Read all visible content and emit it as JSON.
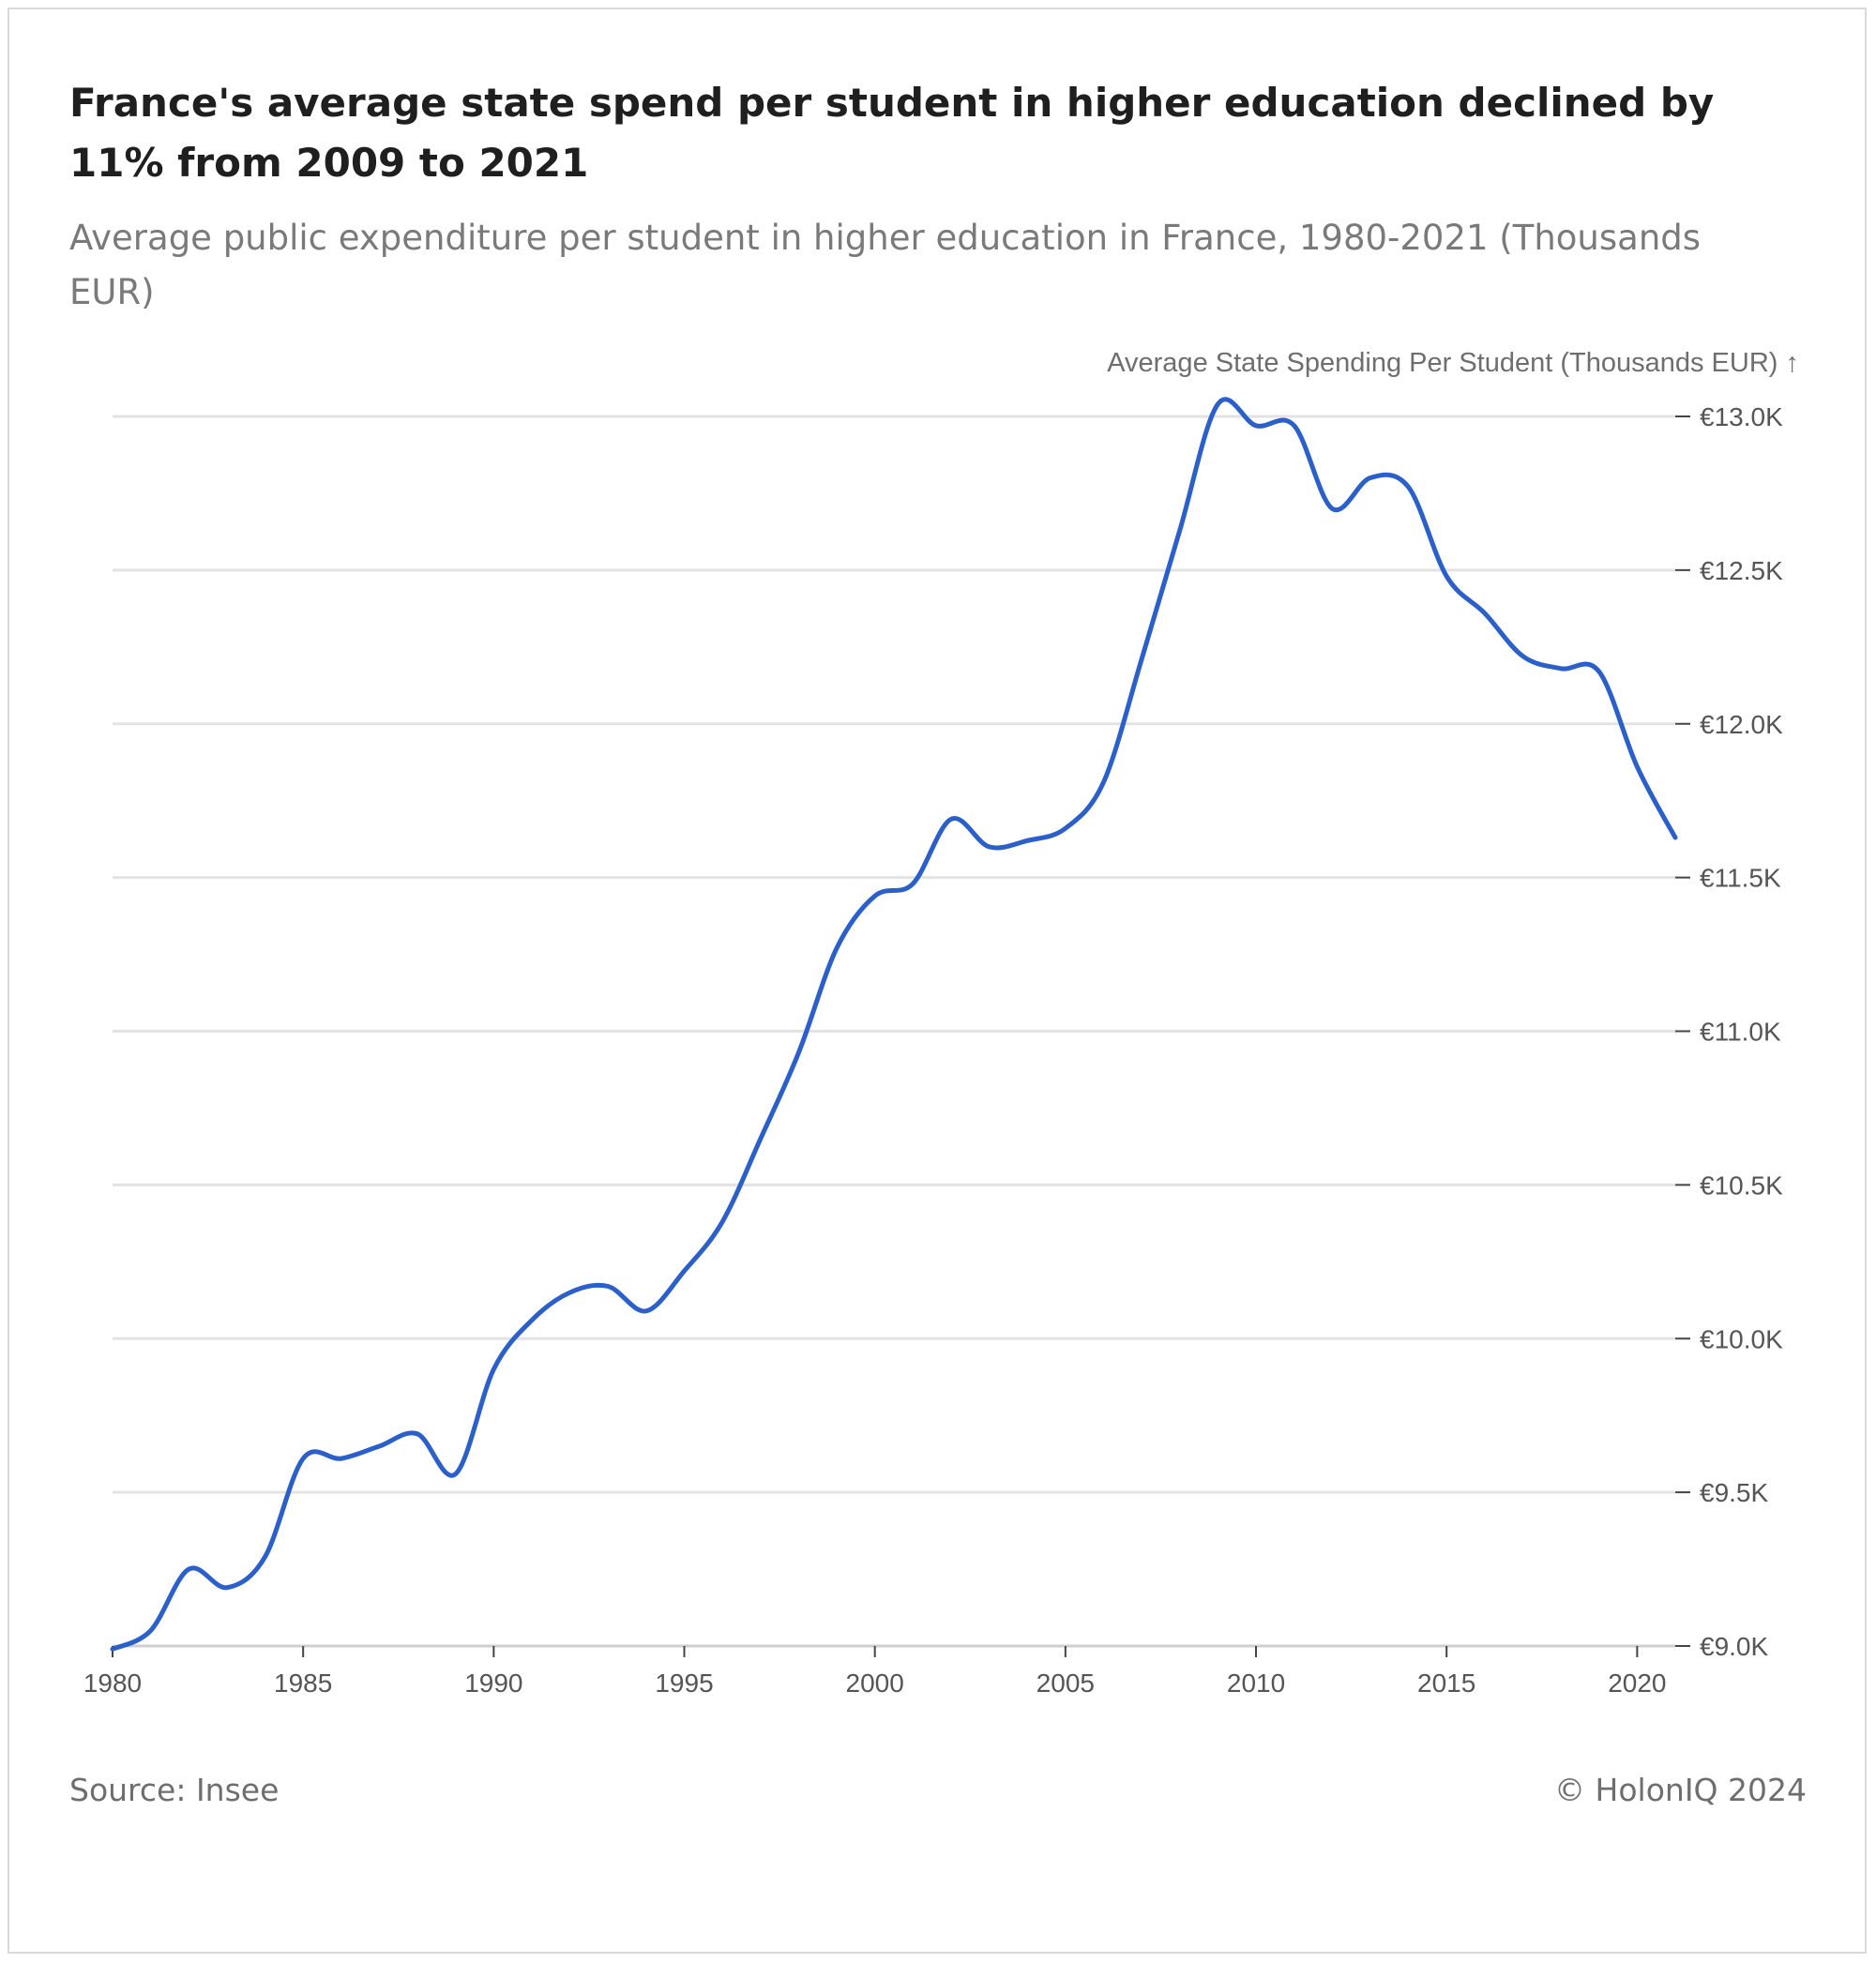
{
  "header": {
    "title": "France's average state spend per student in higher education declined by 11% from 2009 to 2021",
    "subtitle": "Average public expenditure per student in higher education in France, 1980-2021 (Thousands EUR)"
  },
  "footer": {
    "source": "Source: Insee",
    "copyright": "© HolonIQ 2024"
  },
  "colors": {
    "line": "#2b5fc9",
    "grid": "#e3e3e3",
    "text": "#555555"
  },
  "chart_data": {
    "type": "line",
    "title": "France's average state spend per student in higher education declined by 11% from 2009 to 2021",
    "subtitle": "Average public expenditure per student in higher education in France, 1980-2021 (Thousands EUR)",
    "ylabel": "Average State Spending Per Student (Thousands EUR) ↑",
    "xlabel": "",
    "xlim": [
      1980,
      2021
    ],
    "ylim": [
      9.0,
      13.0
    ],
    "grid": true,
    "y_axis_position": "right",
    "x_ticks": [
      1980,
      1985,
      1990,
      1995,
      2000,
      2005,
      2010,
      2015,
      2020
    ],
    "y_ticks": [
      {
        "value": 9.0,
        "label": "€9.0K"
      },
      {
        "value": 9.5,
        "label": "€9.5K"
      },
      {
        "value": 10.0,
        "label": "€10.0K"
      },
      {
        "value": 10.5,
        "label": "€10.5K"
      },
      {
        "value": 11.0,
        "label": "€11.0K"
      },
      {
        "value": 11.5,
        "label": "€11.5K"
      },
      {
        "value": 12.0,
        "label": "€12.0K"
      },
      {
        "value": 12.5,
        "label": "€12.5K"
      },
      {
        "value": 13.0,
        "label": "€13.0K"
      }
    ],
    "series": [
      {
        "x": [
          1980,
          1981,
          1982,
          1983,
          1984,
          1985,
          1986,
          1987,
          1988,
          1989,
          1990,
          1991,
          1992,
          1993,
          1994,
          1995,
          1996,
          1997,
          1998,
          1999,
          2000,
          2001,
          2002,
          2003,
          2004,
          2005,
          2006,
          2007,
          2008,
          2009,
          2010,
          2011,
          2012,
          2013,
          2014,
          2015,
          2016,
          2017,
          2018,
          2019,
          2020,
          2021
        ],
        "values": [
          8.99,
          9.05,
          9.25,
          9.19,
          9.29,
          9.61,
          9.61,
          9.65,
          9.69,
          9.56,
          9.9,
          10.06,
          10.15,
          10.17,
          10.09,
          10.22,
          10.38,
          10.65,
          10.93,
          11.27,
          11.44,
          11.48,
          11.69,
          11.6,
          11.62,
          11.66,
          11.81,
          12.21,
          12.63,
          13.04,
          12.97,
          12.97,
          12.7,
          12.8,
          12.77,
          12.48,
          12.36,
          12.22,
          12.18,
          12.17,
          11.86,
          11.63
        ]
      }
    ]
  }
}
